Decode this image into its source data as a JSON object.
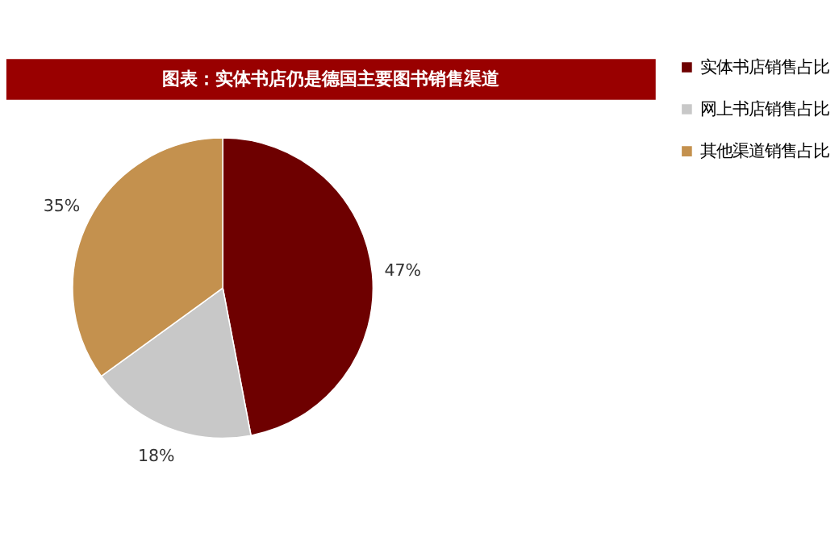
{
  "chart_data": {
    "type": "pie",
    "title": "图表：实体书店仍是德国主要图书销售渠道",
    "categories": [
      "实体书店销售占比",
      "网上书店销售占比",
      "其他渠道销售占比"
    ],
    "values": [
      47,
      18,
      35
    ],
    "colors": [
      "#6e0000",
      "#c8c8c8",
      "#c4914e"
    ],
    "value_labels": [
      "47%",
      "18%",
      "35%"
    ],
    "legend": "right"
  }
}
